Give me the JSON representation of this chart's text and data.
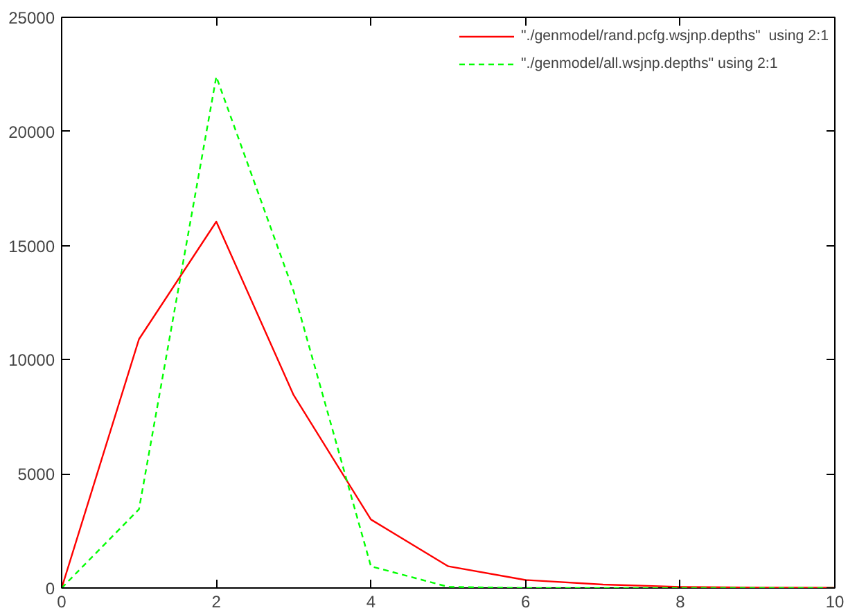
{
  "chart_data": {
    "type": "line",
    "x": [
      0,
      1,
      2,
      3,
      4,
      5,
      6,
      7,
      8,
      9,
      10
    ],
    "series": [
      {
        "name": "\"./genmodel/rand.pcfg.wsjnp.depths\"  using 2:1",
        "color": "#ff0000",
        "line_style": "solid",
        "values": [
          0,
          10900,
          16050,
          8450,
          3000,
          950,
          350,
          150,
          50,
          20,
          10
        ]
      },
      {
        "name": "\"./genmodel/all.wsjnp.depths\" using 2:1",
        "color": "#00ff00",
        "line_style": "dashed",
        "values": [
          0,
          3450,
          22400,
          13000,
          950,
          50,
          0,
          0,
          0,
          0,
          0
        ]
      }
    ],
    "xlim": [
      0,
      10
    ],
    "xticks": [
      0,
      2,
      4,
      6,
      8,
      10
    ],
    "ylim": [
      0,
      25000
    ],
    "yticks": [
      0,
      5000,
      10000,
      15000,
      20000,
      25000
    ],
    "grid": false,
    "legend": "top right",
    "marker": "none"
  }
}
